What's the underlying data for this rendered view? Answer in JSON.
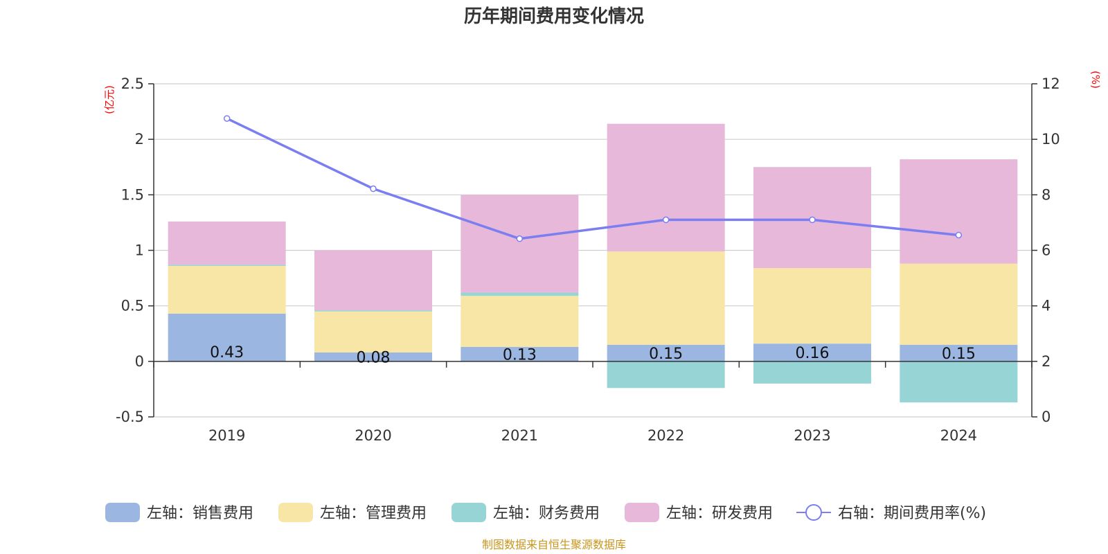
{
  "chart_data": {
    "type": "bar",
    "title": "历年期间费用变化情况",
    "categories": [
      "2019",
      "2020",
      "2021",
      "2022",
      "2023",
      "2024"
    ],
    "left_axis": {
      "unit": "(亿元)",
      "ylim": [
        -0.5,
        2.5
      ],
      "ticks": [
        "-0.5",
        "0",
        "0.5",
        "1",
        "1.5",
        "2",
        "2.5"
      ],
      "tick_values": [
        -0.5,
        0,
        0.5,
        1,
        1.5,
        2,
        2.5
      ]
    },
    "right_axis": {
      "unit": "(%)",
      "ylim": [
        0,
        12
      ],
      "ticks": [
        "0",
        "2",
        "4",
        "6",
        "8",
        "10",
        "12"
      ],
      "tick_values": [
        0,
        2,
        4,
        6,
        8,
        10,
        12
      ]
    },
    "series": [
      {
        "name": "左轴：销售费用",
        "stack": true,
        "color": "#9bb7e1",
        "values": [
          0.43,
          0.08,
          0.13,
          0.15,
          0.16,
          0.15
        ],
        "labels": [
          "0.43",
          "0.08",
          "0.13",
          "0.15",
          "0.16",
          "0.15"
        ]
      },
      {
        "name": "左轴：管理费用",
        "stack": true,
        "color": "#f8e6a6",
        "values": [
          0.43,
          0.37,
          0.46,
          0.84,
          0.68,
          0.73
        ]
      },
      {
        "name": "左轴：财务费用",
        "stack": true,
        "color": "#97d4d5",
        "values": [
          0.01,
          0.01,
          0.03,
          -0.24,
          -0.2,
          -0.37
        ]
      },
      {
        "name": "左轴：研发费用",
        "stack": true,
        "color": "#e7b8d9",
        "values": [
          0.39,
          0.54,
          0.88,
          1.15,
          0.91,
          0.94
        ]
      },
      {
        "name": "右轴：期间费用率(%)",
        "type": "line",
        "axis": "right",
        "color": "#7a7ef0",
        "values": [
          10.75,
          8.22,
          6.42,
          7.1,
          7.1,
          6.55
        ]
      }
    ],
    "grid": true,
    "legend": "bottom"
  },
  "footer": {
    "source": "制图数据来自恒生聚源数据库"
  }
}
